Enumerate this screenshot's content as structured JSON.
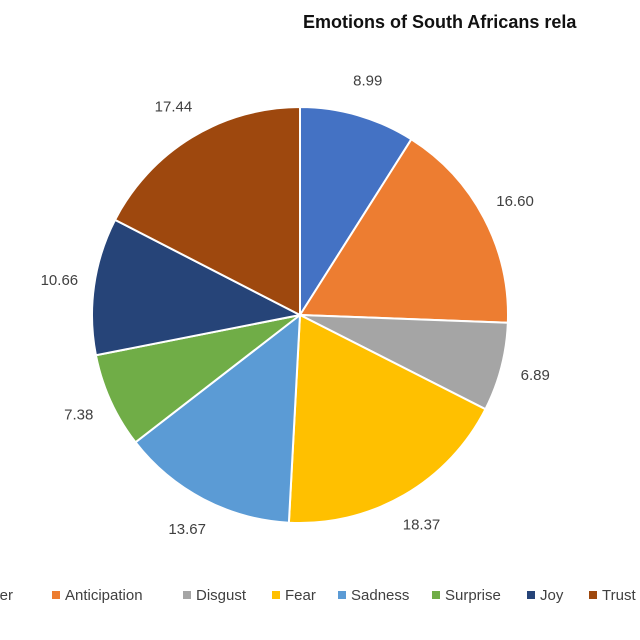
{
  "chart_data": {
    "type": "pie",
    "title": "Emotions of South Africans rela",
    "categories": [
      "nger",
      "Anticipation",
      "Disgust",
      "Fear",
      "Sadness",
      "Surprise",
      "Joy",
      "Trust"
    ],
    "values": [
      8.99,
      16.6,
      6.89,
      18.37,
      13.67,
      7.38,
      10.66,
      17.44
    ],
    "value_labels": [
      "8.99",
      "16.60",
      "6.89",
      "18.37",
      "13.67",
      "7.38",
      "10.66",
      "17.44"
    ],
    "colors": [
      "#4472c4",
      "#ed7d31",
      "#a5a5a5",
      "#ffc000",
      "#5b9bd5",
      "#70ad47",
      "#264478",
      "#9e480e"
    ],
    "legend": "bottom"
  }
}
